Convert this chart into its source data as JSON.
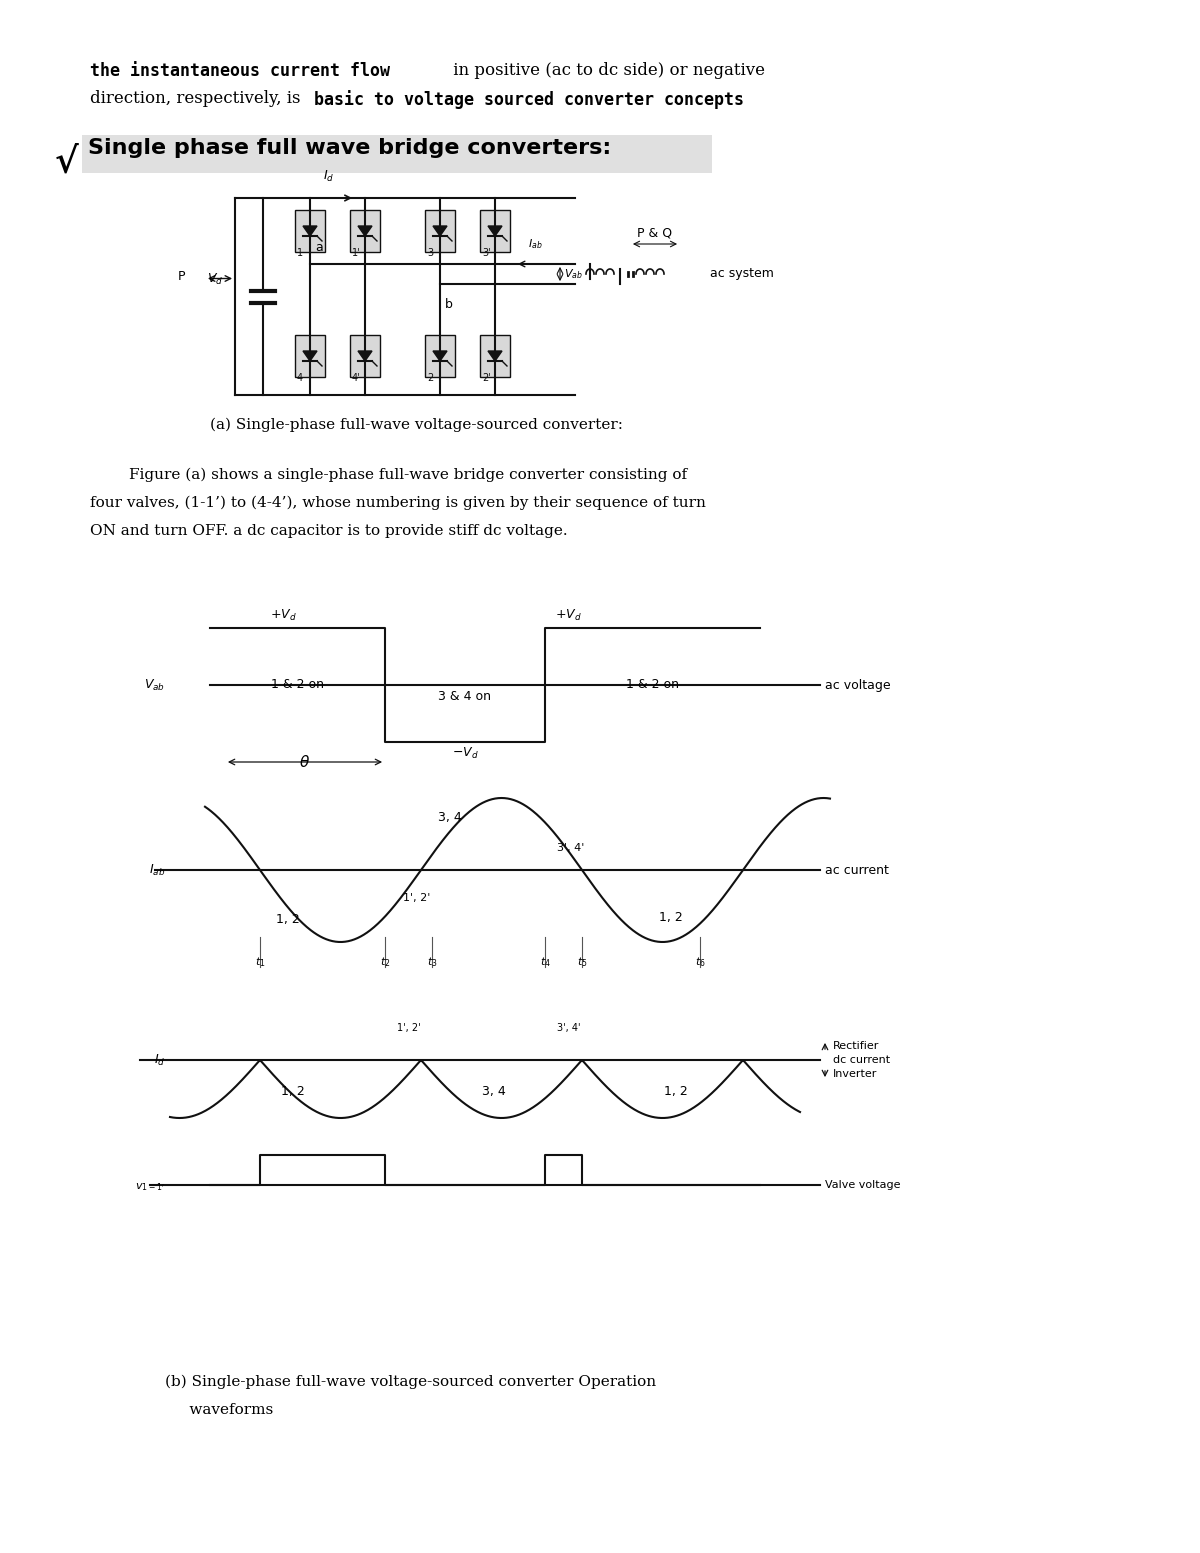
{
  "bg_color": "#ffffff",
  "text_color": "#000000",
  "para1_bold": "the instantaneous current flow",
  "para1_rest_line1": " in positive (ac to dc side) or negative",
  "para1_line2_normal": "direction, respectively, is ",
  "para1_bold2": "basic to voltage sourced converter concepts",
  "para1_rest2": ".",
  "heading": "Single phase full wave bridge converters:",
  "caption_a": "(a) Single-phase full-wave voltage-sourced converter:",
  "para2_line1": "        Figure (a) shows a single-phase full-wave bridge converter consisting of",
  "para2_line2": "four valves, (1-1’) to (4-4’), whose numbering is given by their sequence of turn",
  "para2_line3": "ON and turn OFF. a dc capacitor is to provide stiff dc voltage.",
  "caption_b_line1": "(b) Single-phase full-wave voltage-sourced converter Operation",
  "caption_b_line2": "     waveforms"
}
